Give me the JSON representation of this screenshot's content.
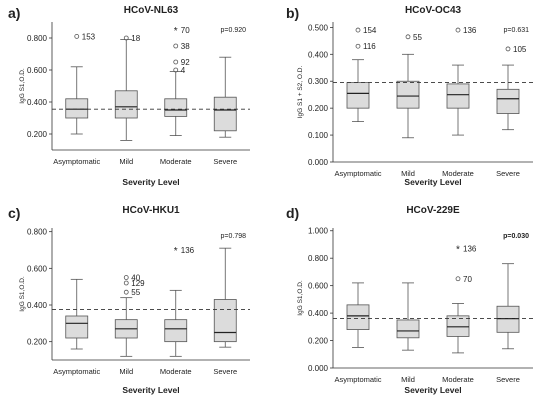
{
  "chart_data": [
    {
      "type": "box",
      "panel_label": "a)",
      "title": "HCoV-NL63",
      "ylabel": "IgG S1,O.D.",
      "xlabel": "Severity Level",
      "categories": [
        "Asymptomatic",
        "Mild",
        "Moderate",
        "Severe"
      ],
      "p_value": "p=0.920",
      "p_bold": false,
      "ylim": [
        0.1,
        0.9
      ],
      "yticks": [
        "0.200",
        "0.400",
        "0.600",
        "0.800"
      ],
      "cutoff": 0.355,
      "boxes": [
        {
          "min": 0.2,
          "q1": 0.3,
          "median": 0.355,
          "q3": 0.42,
          "max": 0.62
        },
        {
          "min": 0.16,
          "q1": 0.3,
          "median": 0.37,
          "q3": 0.47,
          "max": 0.79
        },
        {
          "min": 0.19,
          "q1": 0.31,
          "median": 0.35,
          "q3": 0.42,
          "max": 0.59
        },
        {
          "min": 0.18,
          "q1": 0.22,
          "median": 0.35,
          "q3": 0.43,
          "max": 0.68
        }
      ],
      "outliers": [
        {
          "category": "Asymptomatic",
          "value": 0.81,
          "label": "153",
          "marker": "circle"
        },
        {
          "category": "Mild",
          "value": 0.8,
          "label": "18",
          "marker": "circle"
        },
        {
          "category": "Moderate",
          "value": 0.85,
          "label": "70",
          "marker": "star"
        },
        {
          "category": "Moderate",
          "value": 0.75,
          "label": "38",
          "marker": "circle"
        },
        {
          "category": "Moderate",
          "value": 0.65,
          "label": "92",
          "marker": "circle"
        },
        {
          "category": "Moderate",
          "value": 0.6,
          "label": "4",
          "marker": "circle"
        }
      ]
    },
    {
      "type": "box",
      "panel_label": "b)",
      "title": "HCoV-OC43",
      "ylabel": "IgG S1 + S2, O.D.",
      "xlabel": "Severity Level",
      "categories": [
        "Asymptomatic",
        "Mild",
        "Moderate",
        "Severe"
      ],
      "p_value": "p=0.631",
      "p_bold": false,
      "ylim": [
        0.0,
        0.52
      ],
      "yticks": [
        "0.000",
        "0.100",
        "0.200",
        "0.300",
        "0.400",
        "0.500"
      ],
      "cutoff": 0.295,
      "boxes": [
        {
          "min": 0.15,
          "q1": 0.2,
          "median": 0.255,
          "q3": 0.295,
          "max": 0.38
        },
        {
          "min": 0.09,
          "q1": 0.2,
          "median": 0.245,
          "q3": 0.3,
          "max": 0.4
        },
        {
          "min": 0.1,
          "q1": 0.2,
          "median": 0.25,
          "q3": 0.29,
          "max": 0.36
        },
        {
          "min": 0.12,
          "q1": 0.18,
          "median": 0.235,
          "q3": 0.27,
          "max": 0.36
        }
      ],
      "outliers": [
        {
          "category": "Asymptomatic",
          "value": 0.49,
          "label": "154",
          "marker": "circle"
        },
        {
          "category": "Asymptomatic",
          "value": 0.43,
          "label": "116",
          "marker": "circle"
        },
        {
          "category": "Mild",
          "value": 0.465,
          "label": "55",
          "marker": "circle"
        },
        {
          "category": "Moderate",
          "value": 0.49,
          "label": "136",
          "marker": "circle"
        },
        {
          "category": "Severe",
          "value": 0.42,
          "label": "105",
          "marker": "circle"
        }
      ]
    },
    {
      "type": "box",
      "panel_label": "c)",
      "title": "HCoV-HKU1",
      "ylabel": "IgG S1,O.D.",
      "xlabel": "Severity Level",
      "categories": [
        "Asymptomatic",
        "Mild",
        "Moderate",
        "Severe"
      ],
      "p_value": "p=0.798",
      "p_bold": false,
      "ylim": [
        0.1,
        0.82
      ],
      "yticks": [
        "0.200",
        "0.400",
        "0.600",
        "0.800"
      ],
      "cutoff": 0.375,
      "boxes": [
        {
          "min": 0.16,
          "q1": 0.22,
          "median": 0.3,
          "q3": 0.34,
          "max": 0.54
        },
        {
          "min": 0.12,
          "q1": 0.22,
          "median": 0.27,
          "q3": 0.32,
          "max": 0.44
        },
        {
          "min": 0.12,
          "q1": 0.2,
          "median": 0.27,
          "q3": 0.32,
          "max": 0.48
        },
        {
          "min": 0.17,
          "q1": 0.2,
          "median": 0.25,
          "q3": 0.43,
          "max": 0.71
        }
      ],
      "outliers": [
        {
          "category": "Mild",
          "value": 0.55,
          "label": "40",
          "marker": "circle"
        },
        {
          "category": "Mild",
          "value": 0.52,
          "label": "129",
          "marker": "circle"
        },
        {
          "category": "Mild",
          "value": 0.47,
          "label": "55",
          "marker": "circle"
        },
        {
          "category": "Moderate",
          "value": 0.7,
          "label": "136",
          "marker": "star"
        }
      ]
    },
    {
      "type": "box",
      "panel_label": "d)",
      "title": "HCoV-229E",
      "ylabel": "IgG S1,O.D.",
      "xlabel": "Severity Level",
      "categories": [
        "Asymptomatic",
        "Mild",
        "Moderate",
        "Severe"
      ],
      "p_value": "p=0.030",
      "p_bold": true,
      "ylim": [
        0.0,
        1.02
      ],
      "yticks": [
        "0.000",
        "0.200",
        "0.400",
        "0.600",
        "0.800",
        "1.000"
      ],
      "cutoff": 0.36,
      "boxes": [
        {
          "min": 0.15,
          "q1": 0.28,
          "median": 0.38,
          "q3": 0.46,
          "max": 0.62
        },
        {
          "min": 0.13,
          "q1": 0.22,
          "median": 0.27,
          "q3": 0.35,
          "max": 0.62
        },
        {
          "min": 0.11,
          "q1": 0.23,
          "median": 0.3,
          "q3": 0.38,
          "max": 0.47
        },
        {
          "min": 0.14,
          "q1": 0.26,
          "median": 0.36,
          "q3": 0.45,
          "max": 0.76
        }
      ],
      "outliers": [
        {
          "category": "Moderate",
          "value": 0.87,
          "label": "136",
          "marker": "star"
        },
        {
          "category": "Moderate",
          "value": 0.65,
          "label": "70",
          "marker": "circle"
        }
      ]
    }
  ],
  "colors": {
    "box_fill": "#dcdcdc",
    "box_stroke": "#555555",
    "axis": "#333333",
    "cutoff_line": "#333333",
    "text": "#222222"
  }
}
